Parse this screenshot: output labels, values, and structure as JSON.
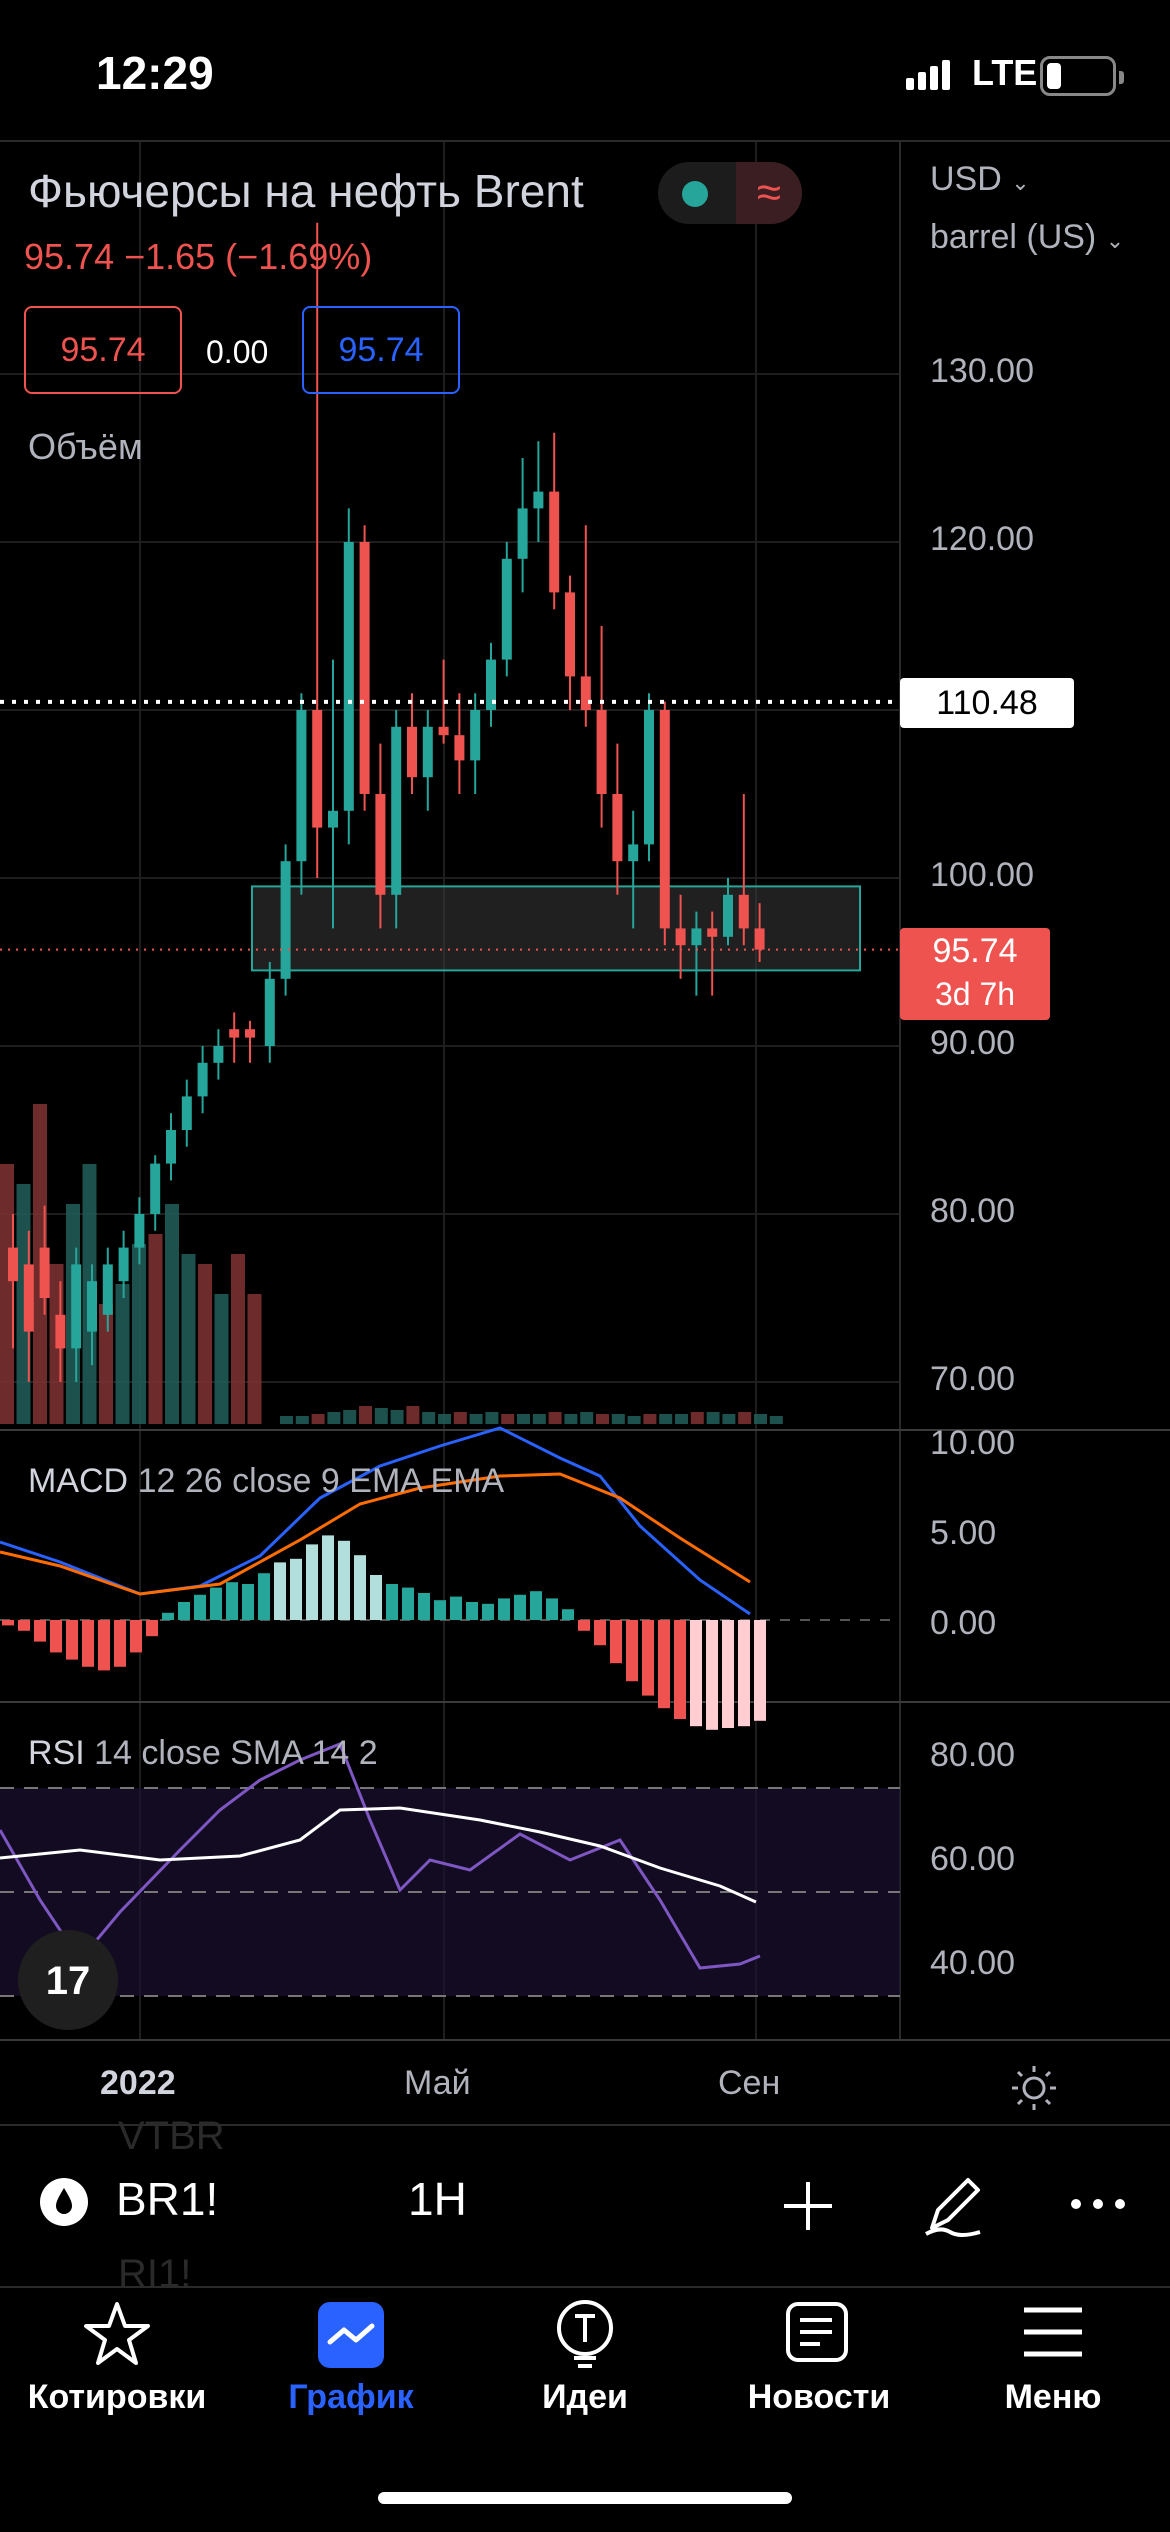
{
  "status_bar": {
    "time": "12:29",
    "network": "LTE"
  },
  "symbol": {
    "title": "Фьючерсы на нефть Brent",
    "price_line": "95.74 −1.65 (−1.69%)",
    "bid": "95.74",
    "spread": "0.00",
    "ask": "95.74",
    "volume_label": "Объём",
    "currency": "USD",
    "unit": "barrel (US)"
  },
  "colors": {
    "up": "#26a69a",
    "down": "#ef5350",
    "macd": "#2962ff",
    "signal": "#ff6d00",
    "rsi": "#7e57c2"
  },
  "price_labels": {
    "highlight": "110.48",
    "last": "95.74",
    "countdown": "3d 7h"
  },
  "macd": {
    "label": "MACD",
    "params": "12 26 close 9 EMA EMA"
  },
  "rsi": {
    "label": "RSI",
    "params": "14 close SMA 14 2"
  },
  "time_axis": {
    "labels": [
      "2022",
      "Май",
      "Сен"
    ]
  },
  "toolbar": {
    "symbol": "BR1!",
    "interval": "1H",
    "ghost_above": "VTBR",
    "ghost_below": "RI1!"
  },
  "nav": [
    {
      "label": "Котировки",
      "icon": "star-icon"
    },
    {
      "label": "График",
      "icon": "chart-icon",
      "active": true
    },
    {
      "label": "Идеи",
      "icon": "lightbulb-icon"
    },
    {
      "label": "Новости",
      "icon": "news-icon"
    },
    {
      "label": "Меню",
      "icon": "menu-icon"
    }
  ],
  "chart_data": {
    "type": "candlestick",
    "price_axis": {
      "ticks": [
        "130.00",
        "120.00",
        "110.00",
        "100.00",
        "90.00",
        "80.00",
        "70.00"
      ],
      "ylim": [
        67.5,
        140
      ]
    },
    "candles": [
      {
        "o": 78,
        "h": 80,
        "l": 72,
        "c": 76
      },
      {
        "o": 77,
        "h": 79,
        "l": 70,
        "c": 73
      },
      {
        "o": 78,
        "h": 80.5,
        "l": 74,
        "c": 75
      },
      {
        "o": 74,
        "h": 76,
        "l": 70,
        "c": 72
      },
      {
        "o": 72,
        "h": 78,
        "l": 70,
        "c": 77
      },
      {
        "o": 73,
        "h": 77,
        "l": 71,
        "c": 76
      },
      {
        "o": 74,
        "h": 78,
        "l": 73,
        "c": 77
      },
      {
        "o": 76,
        "h": 79,
        "l": 75,
        "c": 78
      },
      {
        "o": 78,
        "h": 81,
        "l": 77,
        "c": 80
      },
      {
        "o": 80,
        "h": 83.5,
        "l": 79,
        "c": 83
      },
      {
        "o": 83,
        "h": 86,
        "l": 82,
        "c": 85
      },
      {
        "o": 85,
        "h": 88,
        "l": 84,
        "c": 87
      },
      {
        "o": 87,
        "h": 90,
        "l": 86,
        "c": 89
      },
      {
        "o": 89,
        "h": 91,
        "l": 88,
        "c": 90
      },
      {
        "o": 91,
        "h": 92,
        "l": 89,
        "c": 90.5
      },
      {
        "o": 91,
        "h": 91.5,
        "l": 89,
        "c": 90.5
      },
      {
        "o": 90,
        "h": 95,
        "l": 89,
        "c": 94
      },
      {
        "o": 94,
        "h": 102,
        "l": 93,
        "c": 101
      },
      {
        "o": 101,
        "h": 111,
        "l": 99,
        "c": 110
      },
      {
        "o": 110,
        "h": 139,
        "l": 100,
        "c": 103
      },
      {
        "o": 103,
        "h": 113,
        "l": 97,
        "c": 104
      },
      {
        "o": 104,
        "h": 122,
        "l": 102,
        "c": 120
      },
      {
        "o": 120,
        "h": 121,
        "l": 104,
        "c": 105
      },
      {
        "o": 105,
        "h": 108,
        "l": 97,
        "c": 99
      },
      {
        "o": 99,
        "h": 110,
        "l": 97,
        "c": 109
      },
      {
        "o": 109,
        "h": 111,
        "l": 105,
        "c": 106
      },
      {
        "o": 106,
        "h": 110,
        "l": 104,
        "c": 109
      },
      {
        "o": 109,
        "h": 113,
        "l": 108,
        "c": 108.5
      },
      {
        "o": 108.5,
        "h": 111,
        "l": 105,
        "c": 107
      },
      {
        "o": 107,
        "h": 111,
        "l": 105,
        "c": 110
      },
      {
        "o": 110,
        "h": 114,
        "l": 109,
        "c": 113
      },
      {
        "o": 113,
        "h": 120,
        "l": 112,
        "c": 119
      },
      {
        "o": 119,
        "h": 125,
        "l": 117,
        "c": 122
      },
      {
        "o": 122,
        "h": 126,
        "l": 120,
        "c": 123
      },
      {
        "o": 123,
        "h": 126.5,
        "l": 116,
        "c": 117
      },
      {
        "o": 117,
        "h": 118,
        "l": 110,
        "c": 112
      },
      {
        "o": 112,
        "h": 121,
        "l": 109,
        "c": 110
      },
      {
        "o": 110,
        "h": 115,
        "l": 103,
        "c": 105
      },
      {
        "o": 105,
        "h": 108,
        "l": 99,
        "c": 101
      },
      {
        "o": 101,
        "h": 104,
        "l": 97,
        "c": 102
      },
      {
        "o": 102,
        "h": 111,
        "l": 101,
        "c": 110
      },
      {
        "o": 110,
        "h": 110.5,
        "l": 96,
        "c": 97
      },
      {
        "o": 97,
        "h": 99,
        "l": 94,
        "c": 96
      },
      {
        "o": 96,
        "h": 98,
        "l": 93,
        "c": 97
      },
      {
        "o": 97,
        "h": 98,
        "l": 93,
        "c": 96.5
      },
      {
        "o": 96.5,
        "h": 100,
        "l": 96,
        "c": 99
      },
      {
        "o": 99,
        "h": 105,
        "l": 96,
        "c": 97
      },
      {
        "o": 97,
        "h": 98.5,
        "l": 95,
        "c": 95.74
      }
    ],
    "zone": {
      "from": 94.5,
      "to": 99.5
    },
    "levels": [
      110.48,
      95.74
    ]
  }
}
